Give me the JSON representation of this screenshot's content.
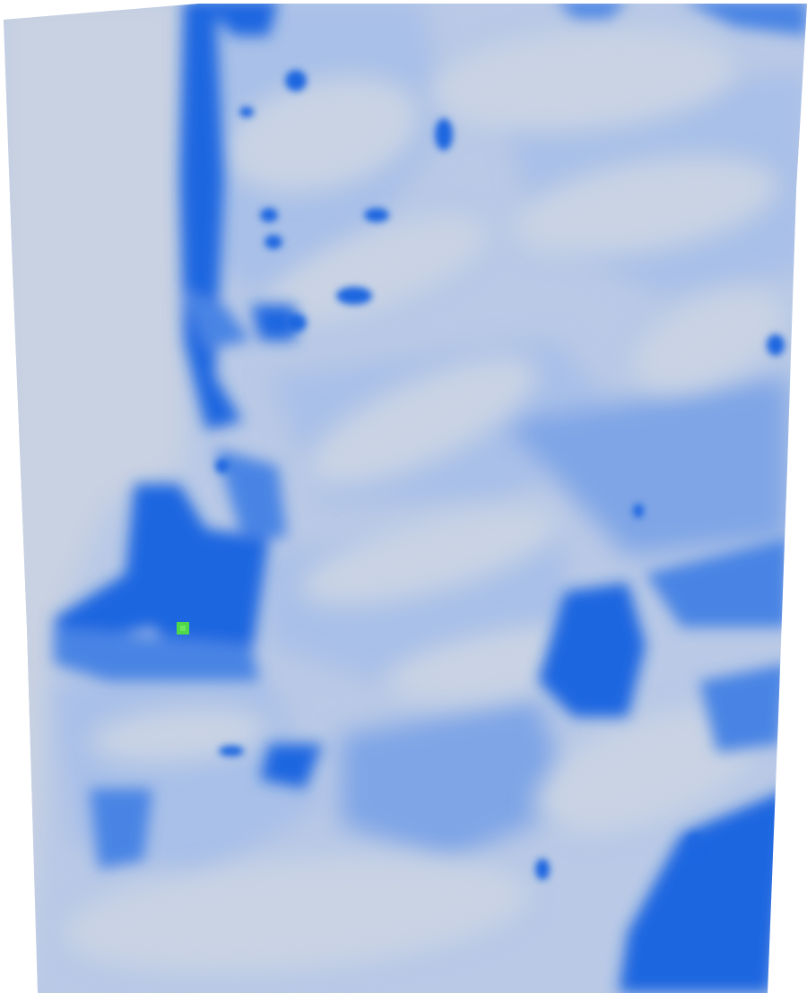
{
  "scene": {
    "background_color": "#ffffff",
    "surface_base_color": "#b9c9e6",
    "colormap": {
      "low": "#c9d3e4",
      "mid_low": "#a9c0e8",
      "mid": "#7fa5e6",
      "mid_high": "#4a84e4",
      "high": "#1f66e0",
      "peak": "#4fd84a"
    },
    "hotspot_color": "#4fd84a"
  }
}
